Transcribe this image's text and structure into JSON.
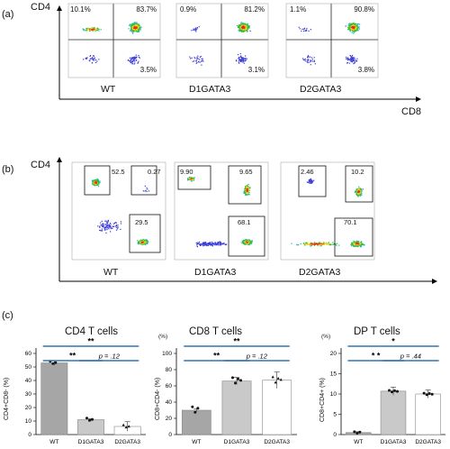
{
  "panel_a": {
    "letter": "(a)",
    "y_axis": "CD4",
    "x_axis": "CD8",
    "plots": [
      {
        "name": "WT",
        "q_ul": "10.1%",
        "q_ur": "83.7%",
        "q_lr": "3.5%"
      },
      {
        "name": "D1GATA3",
        "q_ul": "0.9%",
        "q_ur": "81.2%",
        "q_lr": "3.1%"
      },
      {
        "name": "D2GATA3",
        "q_ul": "1.1%",
        "q_ur": "90.8%",
        "q_lr": "3.8%"
      }
    ]
  },
  "panel_b": {
    "letter": "(b)",
    "y_axis": "CD4",
    "plots": [
      {
        "name": "WT",
        "g_ul": "52.5",
        "g_ur": "0.27",
        "g_lr": "29.5"
      },
      {
        "name": "D1GATA3",
        "g_ul": "9.90",
        "g_ur": "9.65",
        "g_lr": "68.1"
      },
      {
        "name": "D2GATA3",
        "g_ul": "2.46",
        "g_ur": "10.2",
        "g_lr": "70.1"
      }
    ]
  },
  "panel_c": {
    "letter": "(c)"
  },
  "chart_data": [
    {
      "type": "bar",
      "title": "CD4 T cells",
      "ylabel": "CD4+CD8- (%)",
      "categories": [
        "WT",
        "D1GATA3",
        "D2GATA3"
      ],
      "values": [
        53,
        11,
        6
      ],
      "ylim": [
        0,
        60
      ],
      "yticks": [
        "0",
        "10",
        "20",
        "30",
        "40",
        "50",
        "60"
      ],
      "significance": [
        "**",
        "**",
        "p = .12"
      ]
    },
    {
      "type": "bar",
      "title": "CD8 T cells",
      "ylabel": "CD8+CD4- (%)",
      "unit_label": "(%)",
      "categories": [
        "WT",
        "D1GATA3",
        "D2GATA3"
      ],
      "values": [
        30,
        66,
        67
      ],
      "ylim": [
        0,
        100
      ],
      "yticks": [
        "0",
        "20",
        "40",
        "60",
        "80",
        "100"
      ],
      "significance": [
        "**",
        "**",
        "p = .12"
      ]
    },
    {
      "type": "bar",
      "title": "DP T cells",
      "ylabel": "CD8+CD4+ (%)",
      "unit_label": "(%)",
      "categories": [
        "WT",
        "D1GATA3",
        "D2GATA3"
      ],
      "values": [
        0.5,
        10.7,
        10.0
      ],
      "ylim": [
        0,
        20
      ],
      "yticks": [
        "0",
        "5",
        "10",
        "15",
        "20"
      ],
      "significance": [
        "*",
        "* *",
        "p = .44"
      ]
    }
  ],
  "colors": {
    "bar_wt": "#a6a6a6",
    "bar_d1": "#c9c9c9",
    "bar_d2": "#ffffff",
    "sig_line": "#2e75b6"
  }
}
